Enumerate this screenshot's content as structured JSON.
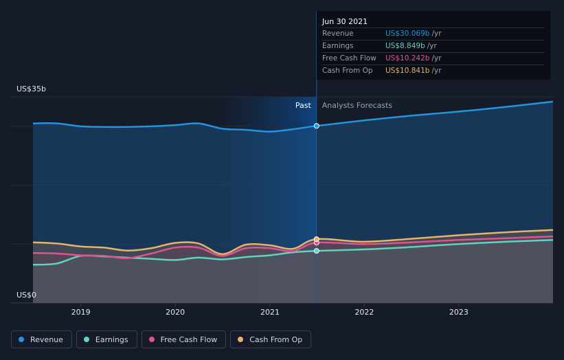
{
  "chart_data": {
    "type": "area",
    "ylabel_top": "US$35b",
    "ylabel_bottom": "US$0",
    "ylim": [
      0,
      35
    ],
    "xlim": [
      "2018-06-30",
      "2023-12-31"
    ],
    "x_ticks": [
      "2019",
      "2020",
      "2021",
      "2022",
      "2023"
    ],
    "past_label": "Past",
    "forecast_label": "Analysts Forecasts",
    "divider_date": "2021-06-30",
    "grid": true,
    "series": [
      {
        "name": "Revenue",
        "color": "#2394df",
        "points": [
          [
            "2018-06-30",
            30.5
          ],
          [
            "2018-09-30",
            30.5
          ],
          [
            "2018-12-31",
            30.0
          ],
          [
            "2019-03-31",
            29.9
          ],
          [
            "2019-06-30",
            29.9
          ],
          [
            "2019-09-30",
            30.0
          ],
          [
            "2019-12-31",
            30.2
          ],
          [
            "2020-03-31",
            30.5
          ],
          [
            "2020-06-30",
            29.6
          ],
          [
            "2020-09-30",
            29.4
          ],
          [
            "2020-12-31",
            29.1
          ],
          [
            "2021-03-31",
            29.5
          ],
          [
            "2021-06-30",
            30.069
          ],
          [
            "2021-12-31",
            31.0
          ],
          [
            "2022-06-30",
            31.8
          ],
          [
            "2022-12-31",
            32.5
          ],
          [
            "2023-06-30",
            33.3
          ],
          [
            "2023-12-31",
            34.2
          ]
        ]
      },
      {
        "name": "Earnings",
        "color": "#5ed4c4",
        "points": [
          [
            "2018-06-30",
            6.5
          ],
          [
            "2018-09-30",
            6.7
          ],
          [
            "2018-12-31",
            8.0
          ],
          [
            "2019-03-31",
            7.9
          ],
          [
            "2019-06-30",
            7.7
          ],
          [
            "2019-09-30",
            7.5
          ],
          [
            "2019-12-31",
            7.3
          ],
          [
            "2020-03-31",
            7.7
          ],
          [
            "2020-06-30",
            7.4
          ],
          [
            "2020-09-30",
            7.8
          ],
          [
            "2020-12-31",
            8.1
          ],
          [
            "2021-03-31",
            8.6
          ],
          [
            "2021-06-30",
            8.849
          ],
          [
            "2021-12-31",
            9.1
          ],
          [
            "2022-06-30",
            9.5
          ],
          [
            "2022-12-31",
            10.0
          ],
          [
            "2023-06-30",
            10.4
          ],
          [
            "2023-12-31",
            10.7
          ]
        ]
      },
      {
        "name": "Free Cash Flow",
        "color": "#e0548e",
        "points": [
          [
            "2018-06-30",
            8.5
          ],
          [
            "2018-09-30",
            8.4
          ],
          [
            "2018-12-31",
            8.1
          ],
          [
            "2019-03-31",
            8.0
          ],
          [
            "2019-06-30",
            7.6
          ],
          [
            "2019-09-30",
            8.4
          ],
          [
            "2019-12-31",
            9.4
          ],
          [
            "2020-03-31",
            9.4
          ],
          [
            "2020-06-30",
            8.0
          ],
          [
            "2020-09-30",
            9.3
          ],
          [
            "2020-12-31",
            9.3
          ],
          [
            "2021-03-31",
            8.8
          ],
          [
            "2021-06-30",
            10.242
          ],
          [
            "2021-12-31",
            10.0
          ],
          [
            "2022-06-30",
            10.3
          ],
          [
            "2022-12-31",
            10.7
          ],
          [
            "2023-06-30",
            11.0
          ],
          [
            "2023-12-31",
            11.3
          ]
        ]
      },
      {
        "name": "Cash From Op",
        "color": "#e8b46b",
        "points": [
          [
            "2018-06-30",
            10.3
          ],
          [
            "2018-09-30",
            10.1
          ],
          [
            "2018-12-31",
            9.6
          ],
          [
            "2019-03-31",
            9.4
          ],
          [
            "2019-06-30",
            8.9
          ],
          [
            "2019-09-30",
            9.3
          ],
          [
            "2019-12-31",
            10.2
          ],
          [
            "2020-03-31",
            10.1
          ],
          [
            "2020-06-30",
            8.3
          ],
          [
            "2020-09-30",
            9.9
          ],
          [
            "2020-12-31",
            9.8
          ],
          [
            "2021-03-31",
            9.2
          ],
          [
            "2021-06-30",
            10.841
          ],
          [
            "2021-12-31",
            10.4
          ],
          [
            "2022-06-30",
            10.9
          ],
          [
            "2022-12-31",
            11.5
          ],
          [
            "2023-06-30",
            12.0
          ],
          [
            "2023-12-31",
            12.4
          ]
        ]
      }
    ]
  },
  "tooltip": {
    "date": "Jun 30 2021",
    "rows": [
      {
        "label": "Revenue",
        "value": "US$30.069b",
        "unit": "/yr",
        "color": "#2394df"
      },
      {
        "label": "Earnings",
        "value": "US$8.849b",
        "unit": "/yr",
        "color": "#5ed4c4"
      },
      {
        "label": "Free Cash Flow",
        "value": "US$10.242b",
        "unit": "/yr",
        "color": "#e0548e"
      },
      {
        "label": "Cash From Op",
        "value": "US$10.841b",
        "unit": "/yr",
        "color": "#e8b46b"
      }
    ]
  },
  "legend": [
    {
      "label": "Revenue",
      "color": "#2394df"
    },
    {
      "label": "Earnings",
      "color": "#5ed4c4"
    },
    {
      "label": "Free Cash Flow",
      "color": "#e0548e"
    },
    {
      "label": "Cash From Op",
      "color": "#e8b46b"
    }
  ]
}
